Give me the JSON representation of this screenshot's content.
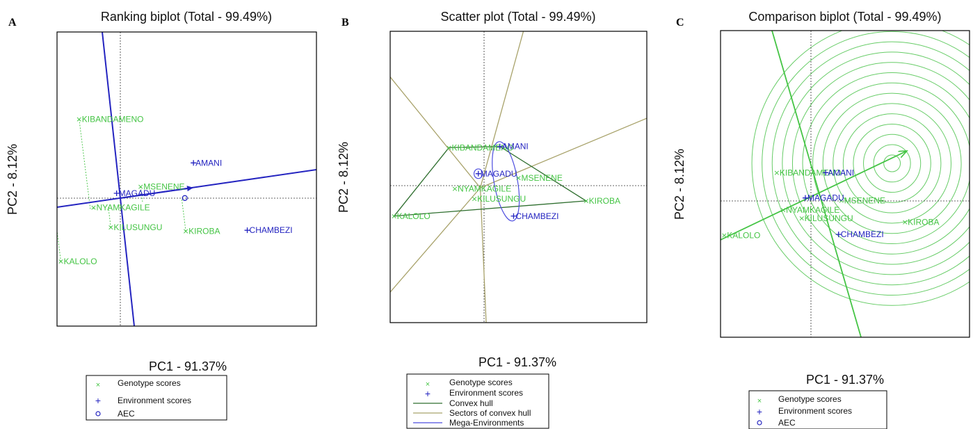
{
  "colors": {
    "genotype": "#44c444",
    "environment": "#2424c0",
    "aec": "#2424c0",
    "convex_hull": "#2e6e2e",
    "sectors": "#a8a26a",
    "mega": "#4d4ddf",
    "rings": "#66cc66",
    "frame": "#000000"
  },
  "chart_data": [
    {
      "type": "scatter",
      "panel_letter": "A",
      "title": "Ranking biplot (Total - 99.49%)",
      "xlabel": "PC1 - 91.37%",
      "ylabel": "PC2 - 8.12%",
      "xlim": [
        -3.0,
        10.5
      ],
      "ylim": [
        -6.3,
        9.2
      ],
      "genotypes": [
        {
          "name": "KIBANDAMENO",
          "x": -1.85,
          "y": 4.6
        },
        {
          "name": "MSENENE",
          "x": 1.35,
          "y": 1.05
        },
        {
          "name": "NYAMKAGILE",
          "x": -1.1,
          "y": -0.05
        },
        {
          "name": "KILUSUNGU",
          "x": -0.2,
          "y": -1.1
        },
        {
          "name": "KIROBA",
          "x": 3.7,
          "y": -1.3
        },
        {
          "name": "KALOLO",
          "x": -2.8,
          "y": -2.9
        }
      ],
      "environments": [
        {
          "name": "AMANI",
          "x": 4.1,
          "y": 2.3
        },
        {
          "name": "MAGADU",
          "x": 0.1,
          "y": 0.7
        },
        {
          "name": "CHAMBEZI",
          "x": 6.9,
          "y": -1.25
        }
      ],
      "aec_point": {
        "x": 3.65,
        "y": 0.45
      },
      "legend": [
        "Genotype scores",
        "Environment scores",
        "AEC"
      ]
    },
    {
      "type": "scatter",
      "panel_letter": "B",
      "title": "Scatter plot (Total - 99.49%)",
      "xlabel": "PC1 - 91.37%",
      "ylabel": "PC2 - 8.12%",
      "xlim": [
        -4.6,
        8.5
      ],
      "ylim": [
        -6.2,
        7.2
      ],
      "genotypes": [
        {
          "name": "KIBANDAMENO",
          "x": -1.6,
          "y": 1.85
        },
        {
          "name": "MSENENE",
          "x": 1.95,
          "y": 0.45
        },
        {
          "name": "NYAMKAGILE",
          "x": -1.3,
          "y": -0.05
        },
        {
          "name": "KILUSUNGU",
          "x": -0.3,
          "y": -0.5
        },
        {
          "name": "KIROBA",
          "x": 5.4,
          "y": -0.6
        },
        {
          "name": "KALOLO",
          "x": -4.4,
          "y": -1.3
        }
      ],
      "environments": [
        {
          "name": "AMANI",
          "x": 1.0,
          "y": 1.9
        },
        {
          "name": "MAGADU",
          "x": -0.1,
          "y": 0.65
        },
        {
          "name": "CHAMBEZI",
          "x": 1.7,
          "y": -1.3
        }
      ],
      "convex_hull_order": [
        "KIBANDAMENO",
        "AMANI",
        "KIROBA",
        "KALOLO"
      ],
      "sector_endpoints": [
        [
          -4.6,
          5.1
        ],
        [
          -4.6,
          -4.8
        ],
        [
          2.2,
          7.2
        ],
        [
          0.3,
          -6.2
        ],
        [
          8.5,
          3.2
        ]
      ],
      "mega_environments": [
        {
          "cx": 1.3,
          "cy": 0.3,
          "rx": 0.6,
          "ry": 1.85,
          "rotate": -10
        },
        {
          "cx": -0.1,
          "cy": 0.65,
          "rx": 0.22,
          "ry": 0.22,
          "rotate": 0
        }
      ],
      "legend": [
        "Genotype scores",
        "Environment scores",
        "Convex hull",
        "Sectors of convex hull",
        "Mega-Environments"
      ]
    },
    {
      "type": "scatter",
      "panel_letter": "C",
      "title": "Comparison biplot (Total - 99.49%)",
      "xlabel": "PC1 - 91.37%",
      "ylabel": "PC2 - 8.12%",
      "xlim": [
        -4.6,
        8.9
      ],
      "ylim": [
        -6.8,
        9.6
      ],
      "genotypes": [
        {
          "name": "KIBANDAMENO",
          "x": -1.55,
          "y": 2.0
        },
        {
          "name": "MSENENE",
          "x": 1.95,
          "y": 0.5
        },
        {
          "name": "NYAMKAGILE",
          "x": -1.2,
          "y": 0.0
        },
        {
          "name": "KILUSUNGU",
          "x": -0.2,
          "y": -0.45
        },
        {
          "name": "KIROBA",
          "x": 5.4,
          "y": -0.65
        },
        {
          "name": "KALOLO",
          "x": -4.4,
          "y": -1.35
        }
      ],
      "environments": [
        {
          "name": "AMANI",
          "x": 1.1,
          "y": 2.0
        },
        {
          "name": "MAGADU",
          "x": 0.0,
          "y": 0.65
        },
        {
          "name": "CHAMBEZI",
          "x": 1.8,
          "y": -1.3
        }
      ],
      "ideal_genotype": {
        "x": 4.7,
        "y": 2.5
      },
      "ring_radii": [
        0.45,
        1.0,
        1.55,
        2.1,
        2.65,
        3.2,
        3.75,
        4.3,
        4.85,
        5.4,
        5.95,
        6.5,
        7.05,
        7.6
      ],
      "legend": [
        "Genotype scores",
        "Environment scores",
        "AEC"
      ]
    }
  ]
}
